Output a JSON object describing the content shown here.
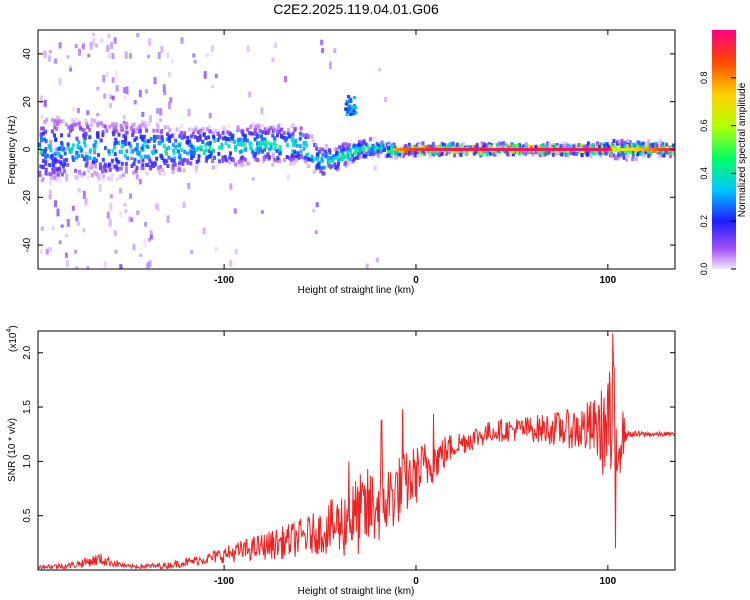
{
  "title": "C2E2.2025.119.04.01.G06",
  "chart_data": [
    {
      "type": "heatmap",
      "xlabel": "Height of straight line (km)",
      "ylabel": "Frequency (Hz)",
      "xlim": [
        -197,
        135
      ],
      "ylim": [
        -50,
        50
      ],
      "xticks": [
        -100,
        0,
        100
      ],
      "yticks": [
        -40,
        -20,
        0,
        20,
        40
      ],
      "grid": false,
      "colorbar": {
        "label": "Normalized spectral amplitude",
        "range": [
          0.0,
          1.0
        ],
        "ticks": [
          "0.0",
          "0.2",
          "0.4",
          "0.6",
          "0.8"
        ]
      },
      "ridge_profile": [
        {
          "x": -195,
          "center": 0,
          "halfwidth": 14,
          "peak": 0.38,
          "scatter": 0.9
        },
        {
          "x": -160,
          "center": 0,
          "halfwidth": 12,
          "peak": 0.4,
          "scatter": 0.9
        },
        {
          "x": -140,
          "center": 0,
          "halfwidth": 11,
          "peak": 0.42,
          "scatter": 0.8
        },
        {
          "x": -120,
          "center": 0,
          "halfwidth": 9,
          "peak": 0.45,
          "scatter": 0.3
        },
        {
          "x": -100,
          "center": 1,
          "halfwidth": 8,
          "peak": 0.5,
          "scatter": 0.25
        },
        {
          "x": -80,
          "center": 2,
          "halfwidth": 8,
          "peak": 0.5,
          "scatter": 0.2
        },
        {
          "x": -60,
          "center": 2,
          "halfwidth": 8,
          "peak": 0.48,
          "scatter": 0.15
        },
        {
          "x": -50,
          "center": -5,
          "halfwidth": 6,
          "peak": 0.45,
          "scatter": 0.1
        },
        {
          "x": -40,
          "center": -3,
          "halfwidth": 5,
          "peak": 0.45,
          "scatter": 0.1
        },
        {
          "x": -30,
          "center": 0,
          "halfwidth": 4,
          "peak": 0.5,
          "scatter": 0.05
        },
        {
          "x": -20,
          "center": 1,
          "halfwidth": 3,
          "peak": 0.55,
          "scatter": 0.03
        },
        {
          "x": -10,
          "center": -1,
          "halfwidth": 2,
          "peak": 0.8,
          "scatter": 0.0
        },
        {
          "x": 0,
          "center": 0,
          "halfwidth": 2,
          "peak": 0.9,
          "scatter": 0.0
        },
        {
          "x": 10,
          "center": 0,
          "halfwidth": 2,
          "peak": 0.95,
          "scatter": 0.0
        },
        {
          "x": 100,
          "center": 0,
          "halfwidth": 2,
          "peak": 0.97,
          "scatter": 0.0
        },
        {
          "x": 103,
          "center": 0,
          "halfwidth": 4,
          "peak": 0.6,
          "scatter": 0.0
        },
        {
          "x": 135,
          "center": 0,
          "halfwidth": 2,
          "peak": 0.97,
          "scatter": 0.0
        }
      ],
      "blob": {
        "x": -35,
        "y": 19,
        "peak": 0.35
      }
    },
    {
      "type": "line",
      "xlabel": "Height of straight line (km)",
      "ylabel": "SNR (10 * v/v)",
      "y_multiplier": "(x10",
      "y_multiplier_exp": "4",
      "y_multiplier_close": ")",
      "xlim": [
        -197,
        135
      ],
      "ylim": [
        0,
        2.2
      ],
      "xticks": [
        -100,
        0,
        100
      ],
      "yticks": [
        0.5,
        1.0,
        1.5,
        2.0
      ],
      "grid": false,
      "series": [
        {
          "color": "#ee2222",
          "envelope": [
            {
              "x": -197,
              "mean": 0.03,
              "amp": 0.02
            },
            {
              "x": -180,
              "mean": 0.04,
              "amp": 0.03
            },
            {
              "x": -165,
              "mean": 0.1,
              "amp": 0.06
            },
            {
              "x": -150,
              "mean": 0.03,
              "amp": 0.02
            },
            {
              "x": -130,
              "mean": 0.04,
              "amp": 0.03
            },
            {
              "x": -110,
              "mean": 0.1,
              "amp": 0.05
            },
            {
              "x": -90,
              "mean": 0.18,
              "amp": 0.1
            },
            {
              "x": -70,
              "mean": 0.25,
              "amp": 0.15
            },
            {
              "x": -50,
              "mean": 0.35,
              "amp": 0.2
            },
            {
              "x": -35,
              "mean": 0.45,
              "amp": 0.35
            },
            {
              "x": -25,
              "mean": 0.55,
              "amp": 0.4
            },
            {
              "x": -15,
              "mean": 0.65,
              "amp": 0.35
            },
            {
              "x": -5,
              "mean": 0.8,
              "amp": 0.3
            },
            {
              "x": 5,
              "mean": 0.95,
              "amp": 0.25
            },
            {
              "x": 20,
              "mean": 1.15,
              "amp": 0.12
            },
            {
              "x": 40,
              "mean": 1.28,
              "amp": 0.1
            },
            {
              "x": 60,
              "mean": 1.3,
              "amp": 0.12
            },
            {
              "x": 80,
              "mean": 1.3,
              "amp": 0.18
            },
            {
              "x": 95,
              "mean": 1.3,
              "amp": 0.3
            },
            {
              "x": 103,
              "mean": 1.25,
              "amp": 0.7
            },
            {
              "x": 110,
              "mean": 1.25,
              "amp": 0.03
            },
            {
              "x": 135,
              "mean": 1.25,
              "amp": 0.02
            }
          ],
          "spikes": [
            {
              "x": -35,
              "y": 1.0
            },
            {
              "x": -18,
              "y": 1.38
            },
            {
              "x": -7,
              "y": 1.48
            },
            {
              "x": 9,
              "y": 1.44
            },
            {
              "x": 100,
              "y": 1.72
            },
            {
              "x": 102.5,
              "y": 2.18
            },
            {
              "x": 104,
              "y": 0.2
            }
          ]
        }
      ]
    }
  ]
}
